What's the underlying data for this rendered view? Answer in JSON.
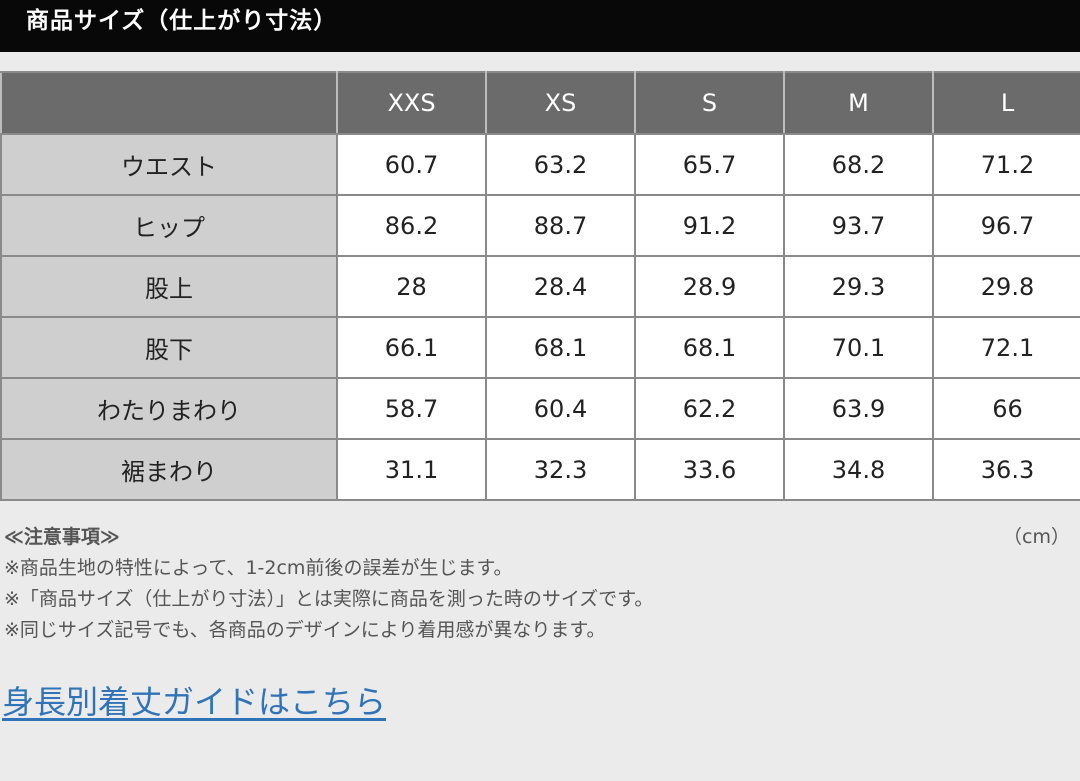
{
  "header": {
    "title": "商品サイズ（仕上がり寸法）"
  },
  "table": {
    "sizes": [
      "XXS",
      "XS",
      "S",
      "M",
      "L"
    ],
    "rows": [
      {
        "label": "ウエスト",
        "values": [
          "60.7",
          "63.2",
          "65.7",
          "68.2",
          "71.2"
        ]
      },
      {
        "label": "ヒップ",
        "values": [
          "86.2",
          "88.7",
          "91.2",
          "93.7",
          "96.7"
        ]
      },
      {
        "label": "股上",
        "values": [
          "28",
          "28.4",
          "28.9",
          "29.3",
          "29.8"
        ]
      },
      {
        "label": "股下",
        "values": [
          "66.1",
          "68.1",
          "68.1",
          "70.1",
          "72.1"
        ]
      },
      {
        "label": "わたりまわり",
        "values": [
          "58.7",
          "60.4",
          "62.2",
          "63.9",
          "66"
        ]
      },
      {
        "label": "裾まわり",
        "values": [
          "31.1",
          "32.3",
          "33.6",
          "34.8",
          "36.3"
        ]
      }
    ]
  },
  "notes": {
    "title": "≪注意事項≫",
    "unit": "（cm）",
    "lines": [
      "※商品生地の特性によって、1-2cm前後の誤差が生じます。",
      "※「商品サイズ（仕上がり寸法）」とは実際に商品を測った時のサイズです。",
      "※同じサイズ記号でも、各商品のデザインにより着用感が異なります。"
    ]
  },
  "link": {
    "label": "身長別着丈ガイドはこちら"
  }
}
